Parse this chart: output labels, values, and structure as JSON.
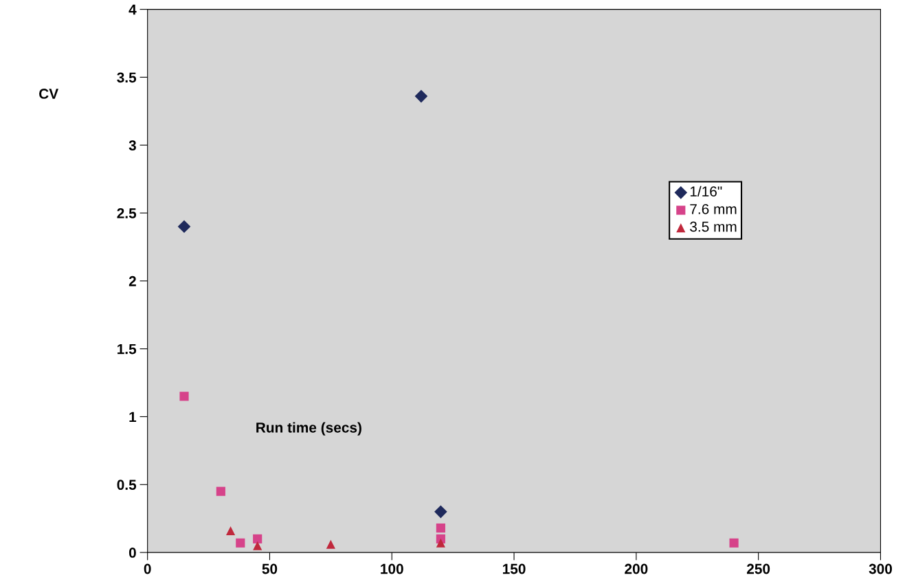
{
  "chart_data": {
    "type": "scatter",
    "xlabel": "Run time (secs)",
    "ylabel": "CV",
    "xlim": [
      0,
      300
    ],
    "xticks": [
      0,
      50,
      100,
      150,
      200,
      250,
      300
    ],
    "ylim": [
      0,
      4
    ],
    "yticks": [
      0,
      0.5,
      1,
      1.5,
      2,
      2.5,
      3,
      3.5,
      4
    ],
    "grid": false,
    "legend": "right",
    "series": [
      {
        "name": "1/16\"",
        "color": "#1f2a5c",
        "marker": "diamond",
        "x": [
          15,
          112,
          120
        ],
        "values": [
          2.4,
          3.36,
          0.3
        ]
      },
      {
        "name": "7.6 mm",
        "color": "#d6438a",
        "marker": "square",
        "x": [
          15,
          30,
          38,
          45,
          120,
          120,
          240
        ],
        "values": [
          1.15,
          0.45,
          0.07,
          0.1,
          0.18,
          0.1,
          0.07
        ]
      },
      {
        "name": "3.5 mm",
        "color": "#c0283c",
        "marker": "triangle",
        "x": [
          34,
          45,
          75,
          120
        ],
        "values": [
          0.16,
          0.05,
          0.06,
          0.07
        ]
      }
    ]
  }
}
